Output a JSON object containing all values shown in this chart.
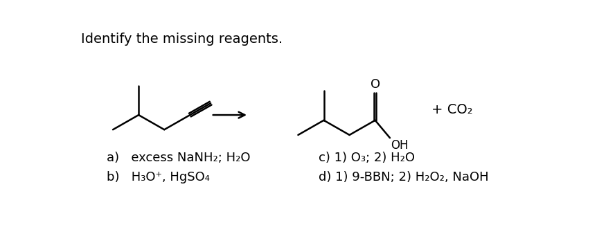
{
  "title": "Identify the missing reagents.",
  "title_fontsize": 14,
  "background_color": "#ffffff",
  "text_color": "#000000",
  "answer_a": "a)   excess NaNH₂; H₂O",
  "answer_b": "b)   H₃O⁺, HgSO₄",
  "answer_c": "c) 1) O₃; 2) H₂O",
  "answer_d": "d) 1) 9-BBN; 2) H₂O₂, NaOH",
  "answer_fontsize": 13,
  "co2_text": "+ CO₂",
  "co2_fontsize": 14,
  "lw": 1.8
}
